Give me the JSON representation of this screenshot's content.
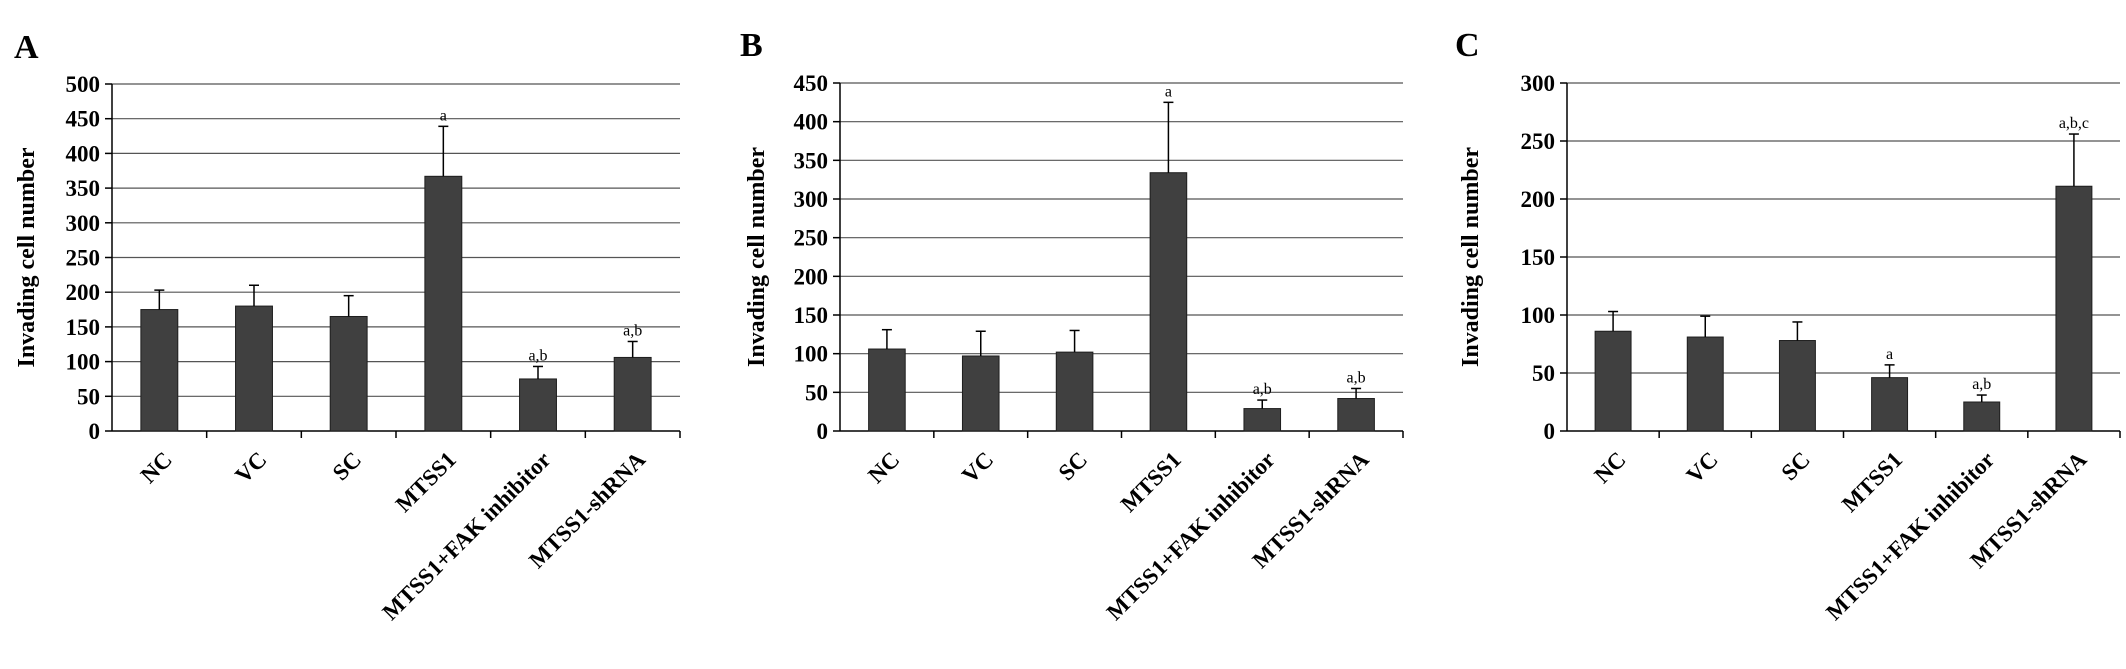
{
  "chart_data": [
    {
      "type": "bar",
      "panel": "A",
      "categories": [
        "NC",
        "VC",
        "SC",
        "MTSS1",
        "MTSS1+FAK inhibitor",
        "MTSS1-shRNA"
      ],
      "values": [
        175,
        180,
        165,
        367,
        75,
        106
      ],
      "errors": [
        28,
        30,
        30,
        72,
        18,
        23
      ],
      "annotations": [
        "",
        "",
        "",
        "a",
        "a,b",
        "a,b"
      ],
      "ylabel": "Invading cell number",
      "ylim": [
        0,
        500
      ],
      "yticks": [
        0,
        50,
        100,
        150,
        200,
        250,
        300,
        350,
        400,
        450,
        500
      ],
      "grid": true
    },
    {
      "type": "bar",
      "panel": "B",
      "categories": [
        "NC",
        "VC",
        "SC",
        "MTSS1",
        "MTSS1+FAK inhibitor",
        "MTSS1-shRNA"
      ],
      "values": [
        106,
        97,
        102,
        334,
        29,
        42
      ],
      "errors": [
        25,
        32,
        28,
        91,
        11,
        13
      ],
      "annotations": [
        "",
        "",
        "",
        "a",
        "a,b",
        "a,b"
      ],
      "ylabel": "Invading cell number",
      "ylim": [
        0,
        450
      ],
      "yticks": [
        0,
        50,
        100,
        150,
        200,
        250,
        300,
        350,
        400,
        450
      ],
      "grid": true
    },
    {
      "type": "bar",
      "panel": "C",
      "categories": [
        "NC",
        "VC",
        "SC",
        "MTSS1",
        "MTSS1+FAK inhibitor",
        "MTSS1-shRNA"
      ],
      "values": [
        86,
        81,
        78,
        46,
        25,
        211
      ],
      "errors": [
        17,
        18,
        16,
        11,
        6,
        45
      ],
      "annotations": [
        "",
        "",
        "",
        "a",
        "a,b",
        "a,b,c"
      ],
      "ylabel": "Invading cell number",
      "ylim": [
        0,
        300
      ],
      "yticks": [
        0,
        50,
        100,
        150,
        200,
        250,
        300
      ],
      "grid": true
    }
  ]
}
